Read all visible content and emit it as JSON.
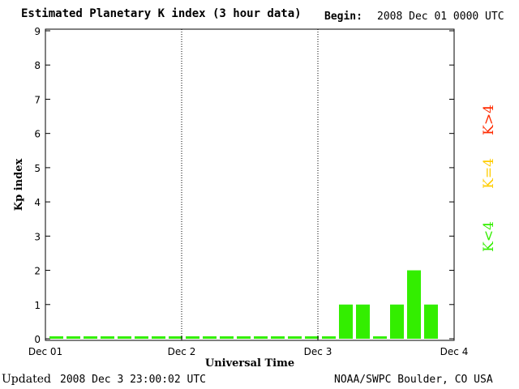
{
  "header": {
    "title": "Estimated Planetary K index (3 hour data)",
    "begin_label": "Begin:",
    "begin_value": "2008 Dec 01 0000 UTC"
  },
  "footer": {
    "updated_label": "Updated",
    "updated_value": "2008 Dec  3 23:00:02 UTC",
    "source": "NOAA/SWPC Boulder, CO USA"
  },
  "legend": [
    {
      "label": "K>4",
      "color": "#ff2a00"
    },
    {
      "label": "K=4",
      "color": "#ffcc00"
    },
    {
      "label": "K<4",
      "color": "#33ee00"
    }
  ],
  "chart_data": {
    "type": "bar",
    "title": "Estimated Planetary K index (3 hour data)",
    "xlabel": "Universal Time",
    "ylabel": "Kp index",
    "ylim": [
      0,
      9
    ],
    "yticks": [
      0,
      1,
      2,
      3,
      4,
      5,
      6,
      7,
      8,
      9
    ],
    "x_tick_labels": [
      "Dec 01",
      "Dec 2",
      "Dec 3",
      "Dec 4"
    ],
    "day_dividers": true,
    "bar_color": "#33ee00",
    "series": [
      {
        "values": [
          0,
          0,
          0,
          0,
          0,
          0,
          0,
          0,
          0,
          0,
          0,
          0,
          0,
          0,
          0,
          0,
          0,
          1,
          1,
          0,
          1,
          2,
          1
        ]
      }
    ]
  }
}
